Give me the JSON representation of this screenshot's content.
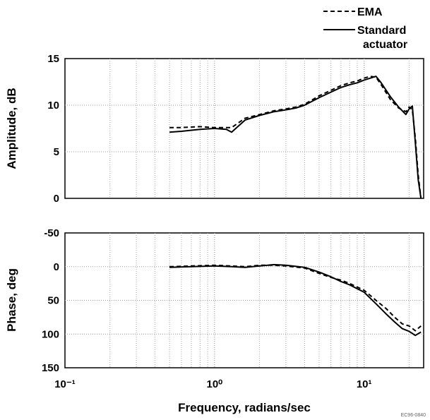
{
  "legend": [
    {
      "label": "EMA",
      "style": "dashed"
    },
    {
      "label": "Standard\nactuator",
      "style": "solid"
    }
  ],
  "footnote": "EC96-0840",
  "chart_data": [
    {
      "type": "line",
      "title": "",
      "xlabel": "",
      "ylabel": "Amplitude, dB",
      "xscale": "log",
      "xlim": [
        0.1,
        25
      ],
      "ylim": [
        0,
        15
      ],
      "yticks": [
        "15",
        "10",
        "5",
        "0"
      ],
      "grid": true,
      "series": [
        {
          "name": "EMA",
          "x": [
            0.5,
            0.6,
            0.8,
            1.0,
            1.3,
            1.6,
            2.0,
            2.5,
            3.0,
            3.5,
            4.0,
            5.0,
            6.0,
            7.0,
            8.0,
            9.0,
            10.0,
            11.0,
            12.0,
            13.0,
            15.0,
            17.0,
            19.0,
            20.0,
            21.0,
            22.0,
            23.0,
            24.0
          ],
          "y": [
            7.6,
            7.6,
            7.7,
            7.6,
            7.6,
            8.6,
            9.0,
            9.4,
            9.6,
            9.8,
            10.1,
            11.0,
            11.6,
            12.1,
            12.4,
            12.6,
            12.9,
            13.1,
            13.0,
            12.2,
            10.6,
            9.7,
            9.3,
            9.8,
            9.5,
            6.5,
            2.5,
            0.0
          ]
        },
        {
          "name": "Standard actuator",
          "x": [
            0.5,
            0.6,
            0.8,
            1.0,
            1.2,
            1.3,
            1.6,
            2.0,
            2.5,
            3.0,
            3.5,
            4.0,
            5.0,
            6.0,
            7.0,
            8.0,
            9.0,
            10.0,
            11.0,
            12.0,
            13.0,
            15.0,
            17.0,
            19.0,
            20.0,
            21.0,
            22.0,
            23.0,
            24.0
          ],
          "y": [
            7.1,
            7.2,
            7.4,
            7.5,
            7.4,
            7.1,
            8.4,
            8.9,
            9.3,
            9.5,
            9.7,
            10.0,
            10.8,
            11.4,
            11.9,
            12.2,
            12.4,
            12.7,
            12.9,
            13.1,
            12.4,
            10.9,
            9.8,
            9.0,
            9.6,
            9.9,
            6.0,
            2.0,
            0.0
          ]
        }
      ]
    },
    {
      "type": "line",
      "title": "",
      "xlabel": "Frequency, radians/sec",
      "ylabel": "Phase, deg",
      "xscale": "log",
      "xlim": [
        0.1,
        25
      ],
      "ylim": [
        150,
        -50
      ],
      "yticks": [
        "-50",
        "0",
        "50",
        "100",
        "150"
      ],
      "xticks": [
        "10⁻¹",
        "10⁰",
        "10¹"
      ],
      "xtick_values": [
        0.1,
        1,
        10
      ],
      "grid": true,
      "series": [
        {
          "name": "EMA",
          "x": [
            0.5,
            0.7,
            1.0,
            1.3,
            1.6,
            2.0,
            2.5,
            3.0,
            4.0,
            5.0,
            6.0,
            7.0,
            8.0,
            10.0,
            12.0,
            14.0,
            16.0,
            18.0,
            20.0,
            22.0,
            24.0
          ],
          "y": [
            0,
            -1,
            -2,
            -1,
            0,
            -2,
            -2,
            -1,
            2,
            10,
            16,
            20,
            25,
            35,
            50,
            62,
            75,
            85,
            88,
            95,
            88
          ]
        },
        {
          "name": "Standard actuator",
          "x": [
            0.5,
            0.7,
            1.0,
            1.3,
            1.6,
            2.0,
            2.5,
            3.0,
            4.0,
            5.0,
            6.0,
            7.0,
            8.0,
            10.0,
            12.0,
            14.0,
            16.0,
            18.0,
            20.0,
            22.0,
            24.0
          ],
          "y": [
            1,
            0,
            -1,
            0,
            1,
            -1,
            -3,
            -2,
            1,
            8,
            15,
            22,
            27,
            38,
            55,
            70,
            82,
            92,
            96,
            102,
            97
          ]
        }
      ]
    }
  ]
}
